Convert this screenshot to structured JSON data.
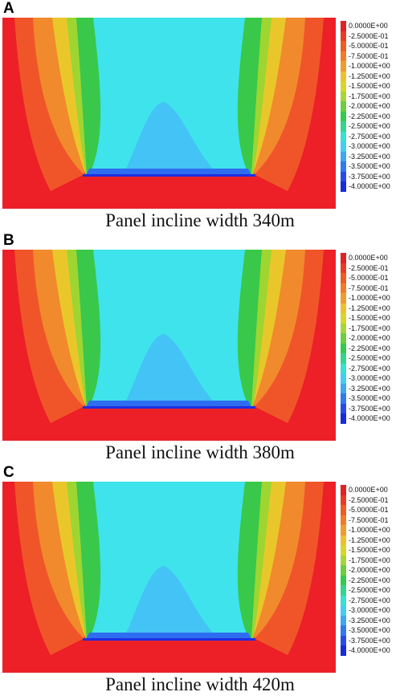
{
  "colors": {
    "red": "#ec2026",
    "orange1": "#f0552a",
    "orange2": "#f18a2c",
    "yellow": "#e9c72a",
    "lime": "#9ed531",
    "green": "#39c849",
    "cyan": "#3fe3ec",
    "sky": "#44c3f6",
    "blue": "#2f6df0",
    "deep_blue": "#1e2fe0"
  },
  "legend": {
    "labels": [
      "0.0000E+00",
      "-2.5000E-01",
      "-5.0000E-01",
      "-7.5000E-01",
      "-1.0000E+00",
      "-1.2500E+00",
      "-1.5000E+00",
      "-1.7500E+00",
      "-2.0000E+00",
      "-2.2500E+00",
      "-2.5000E+00",
      "-2.7500E+00",
      "-3.0000E+00",
      "-3.2500E+00",
      "-3.5000E+00",
      "-3.7500E+00",
      "-4.0000E+00"
    ],
    "swatches": [
      "#e32023",
      "#ea3a23",
      "#ef5b26",
      "#f17b2a",
      "#f19c2e",
      "#eec12c",
      "#d8d52d",
      "#a9d536",
      "#6fcd3f",
      "#37c94e",
      "#38d38f",
      "#3ddfd0",
      "#43cdf4",
      "#3fa6f4",
      "#3479f0",
      "#284ce6",
      "#1a2bd8"
    ]
  },
  "panels": [
    {
      "letter": "A",
      "caption": "Panel incline width 340m",
      "incline_width_m": 340
    },
    {
      "letter": "B",
      "caption": "Panel incline width 380m",
      "incline_width_m": 380
    },
    {
      "letter": "C",
      "caption": "Panel incline width 420m",
      "incline_width_m": 420
    }
  ]
}
